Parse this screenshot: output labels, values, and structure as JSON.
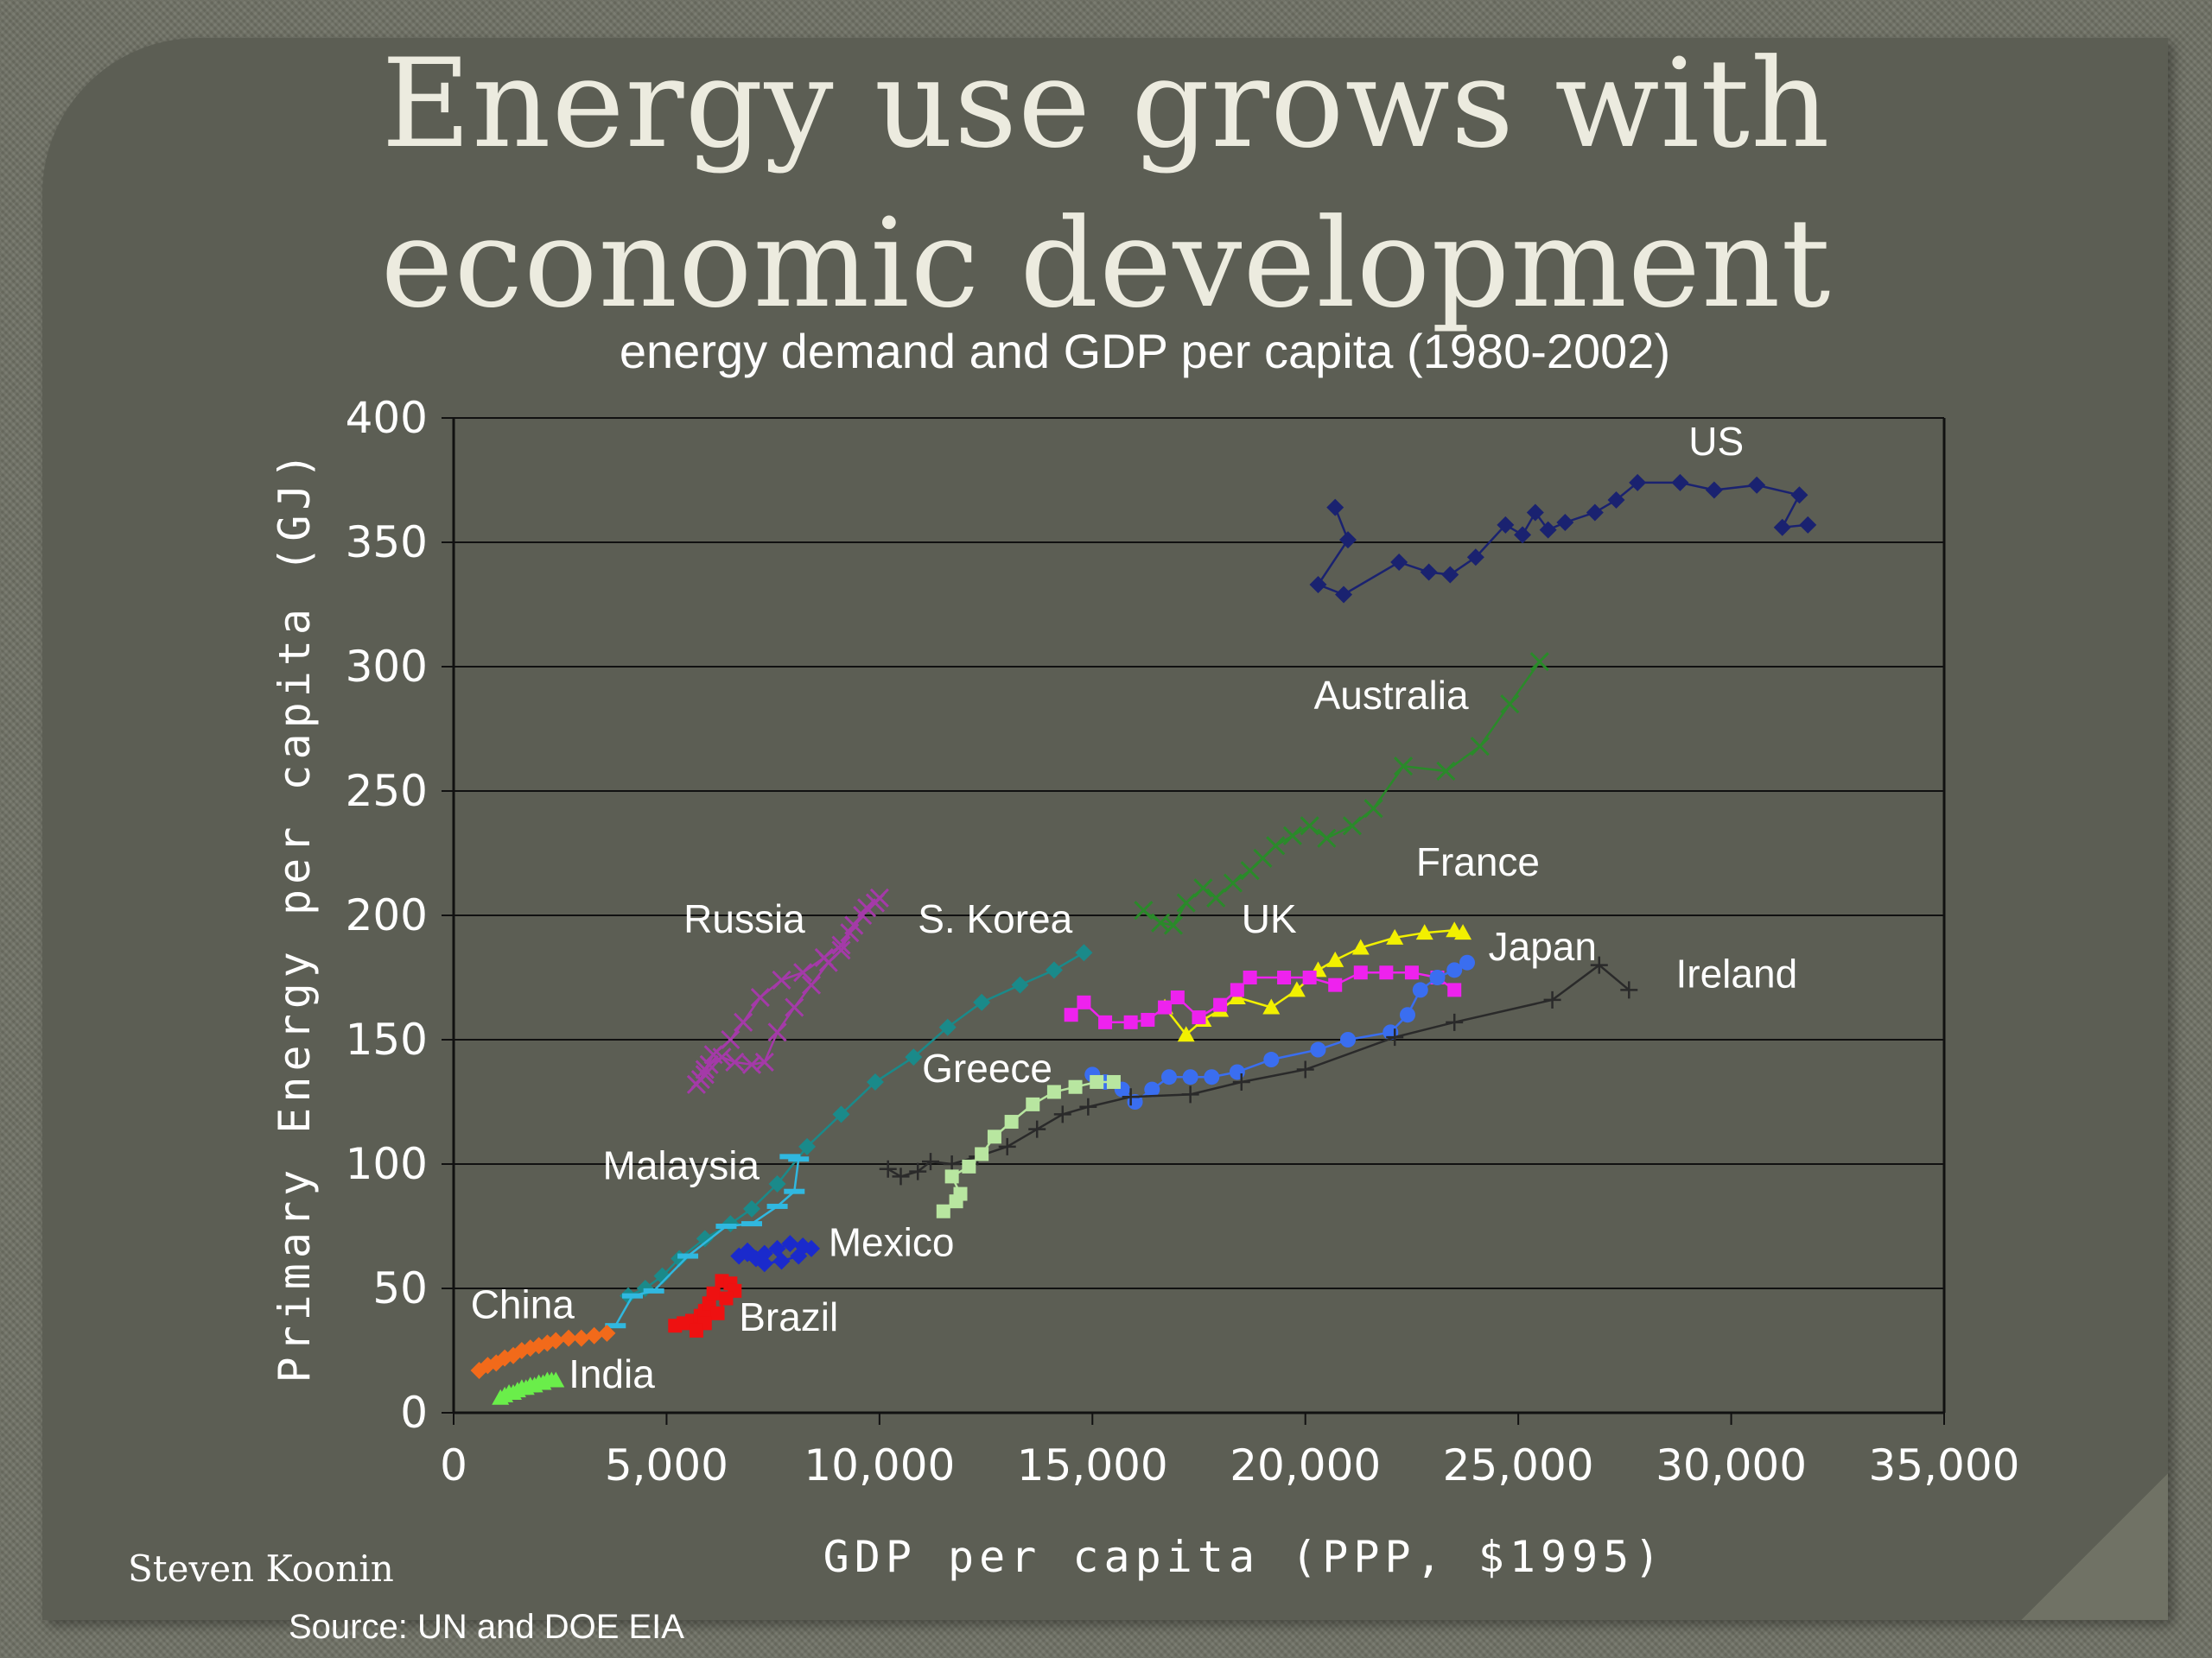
{
  "title_line1": "Energy use grows with",
  "title_line2": "economic development",
  "author": "Steven Koonin",
  "source": "Source: UN and DOE EIA",
  "chart_data": {
    "type": "scatter",
    "title": "energy demand and GDP per capita (1980-2002)",
    "xlabel": "GDP  per  capita  (PPP,  $1995)",
    "ylabel": "Primary  Energy  per  capita  (GJ)",
    "xlim": [
      0,
      35000
    ],
    "ylim": [
      0,
      400
    ],
    "xticks": [
      "0",
      "5,000",
      "10,000",
      "15,000",
      "20,000",
      "25,000",
      "30,000",
      "35,000"
    ],
    "yticks": [
      "0",
      "50",
      "100",
      "150",
      "200",
      "250",
      "300",
      "350",
      "400"
    ],
    "grid": "horizontal",
    "series": [
      {
        "name": "US",
        "color": "#1a2270",
        "marker": "diamond",
        "x": [
          20700,
          21000,
          20300,
          20900,
          22200,
          22900,
          23400,
          24000,
          24700,
          25100,
          25400,
          25700,
          26100,
          26800,
          27300,
          27800,
          28800,
          29600,
          30600,
          31600,
          31200,
          31800
        ],
        "y": [
          364,
          351,
          333,
          329,
          342,
          338,
          337,
          344,
          357,
          353,
          362,
          355,
          358,
          362,
          367,
          374,
          374,
          371,
          373,
          369,
          356,
          357
        ]
      },
      {
        "name": "Australia",
        "color": "#2a8a2a",
        "marker": "x",
        "x": [
          16200,
          16600,
          16900,
          17200,
          17600,
          17900,
          18300,
          18700,
          19000,
          19300,
          19700,
          20100,
          20500,
          21100,
          21600,
          22300,
          23300,
          24100,
          24800,
          25500
        ],
        "y": [
          202,
          197,
          196,
          205,
          211,
          207,
          213,
          218,
          223,
          228,
          232,
          236,
          231,
          236,
          243,
          260,
          258,
          268,
          285,
          302
        ]
      },
      {
        "name": "France",
        "color": "#f2f000",
        "marker": "triangle",
        "x": [
          16700,
          17200,
          17600,
          18000,
          18400,
          19200,
          19800,
          20300,
          20700,
          21300,
          22100,
          22800,
          23500,
          23700
        ],
        "y": [
          163,
          152,
          158,
          162,
          167,
          163,
          170,
          178,
          182,
          187,
          191,
          193,
          194,
          193
        ]
      },
      {
        "name": "UK",
        "color": "#ee22ee",
        "marker": "square",
        "x": [
          14500,
          14800,
          15300,
          15900,
          16300,
          16700,
          17000,
          17500,
          18000,
          18400,
          18700,
          19500,
          20100,
          20700,
          21300,
          21900,
          22500,
          23100,
          23500
        ],
        "y": [
          160,
          165,
          157,
          157,
          158,
          163,
          167,
          159,
          164,
          170,
          175,
          175,
          175,
          172,
          177,
          177,
          177,
          175,
          170
        ]
      },
      {
        "name": "Japan",
        "color": "#3a6ef0",
        "marker": "circle",
        "x": [
          15000,
          15300,
          15700,
          16000,
          16400,
          16800,
          17300,
          17800,
          18400,
          19200,
          20300,
          21000,
          22000,
          22400,
          22700,
          23100,
          23500,
          23800
        ],
        "y": [
          136,
          133,
          130,
          125,
          130,
          135,
          135,
          135,
          137,
          142,
          146,
          150,
          153,
          160,
          170,
          175,
          178,
          181
        ]
      },
      {
        "name": "Ireland",
        "color": "#2a2a2a",
        "marker": "plus",
        "x": [
          10200,
          10500,
          10900,
          11200,
          11700,
          12300,
          13000,
          13700,
          14300,
          14900,
          15900,
          17300,
          18500,
          20000,
          22100,
          23500,
          25800,
          26900,
          27600
        ],
        "y": [
          98,
          95,
          97,
          101,
          100,
          103,
          107,
          114,
          120,
          123,
          127,
          128,
          133,
          138,
          151,
          157,
          166,
          180,
          170
        ]
      },
      {
        "name": "Greece",
        "color": "#b8e6a0",
        "marker": "square",
        "x": [
          11500,
          11800,
          11900,
          11700,
          12100,
          12400,
          12700,
          13100,
          13600,
          14100,
          14600,
          15100,
          15500
        ],
        "y": [
          81,
          85,
          88,
          95,
          99,
          104,
          111,
          117,
          124,
          129,
          131,
          133,
          133
        ]
      },
      {
        "name": "Russia",
        "color": "#a43aa8",
        "marker": "x",
        "x": [
          5700,
          5900,
          6000,
          6300,
          6600,
          7000,
          7300,
          7600,
          8000,
          8400,
          8800,
          9100,
          9300,
          9600,
          9900,
          10000,
          9700,
          9400,
          9100,
          8700,
          8200,
          7700,
          7200,
          6800,
          6500,
          6100,
          5900,
          5800
        ],
        "y": [
          132,
          136,
          140,
          143,
          141,
          140,
          141,
          153,
          163,
          172,
          181,
          186,
          193,
          200,
          205,
          207,
          203,
          196,
          188,
          183,
          177,
          174,
          167,
          157,
          150,
          144,
          138,
          134
        ]
      },
      {
        "name": "S. Korea",
        "color": "#1a8a8a",
        "marker": "diamond",
        "x": [
          4100,
          4500,
          4900,
          5300,
          5900,
          6500,
          7000,
          7600,
          8300,
          9100,
          9900,
          10800,
          11600,
          12400,
          13300,
          14100,
          14800
        ],
        "y": [
          47,
          50,
          55,
          62,
          70,
          76,
          82,
          92,
          107,
          120,
          133,
          143,
          155,
          165,
          172,
          178,
          185
        ]
      },
      {
        "name": "Malaysia",
        "color": "#30b8e0",
        "marker": "dash",
        "x": [
          3800,
          4200,
          4700,
          5500,
          6400,
          7000,
          7600,
          8000,
          8100,
          7900
        ],
        "y": [
          35,
          47,
          49,
          63,
          75,
          76,
          83,
          89,
          102,
          103
        ]
      },
      {
        "name": "Mexico",
        "color": "#1a2acc",
        "marker": "diamond",
        "x": [
          6700,
          6900,
          7100,
          7300,
          7600,
          7900,
          8200,
          8400,
          8100,
          7700,
          7300,
          6900
        ],
        "y": [
          63,
          65,
          62,
          64,
          66,
          68,
          67,
          66,
          63,
          61,
          60,
          64
        ]
      },
      {
        "name": "Brazil",
        "color": "#ee1111",
        "marker": "square",
        "x": [
          5200,
          5400,
          5600,
          5800,
          5900,
          6000,
          6100,
          6300,
          6500,
          6600,
          6400,
          6200,
          5900,
          5700
        ],
        "y": [
          35,
          36,
          37,
          39,
          41,
          44,
          48,
          53,
          52,
          49,
          46,
          40,
          36,
          33
        ]
      },
      {
        "name": "China",
        "color": "#f26a1a",
        "marker": "diamond",
        "x": [
          600,
          800,
          1000,
          1200,
          1400,
          1600,
          1800,
          2000,
          2200,
          2400,
          2700,
          3000,
          3300,
          3600
        ],
        "y": [
          17,
          19,
          20,
          22,
          23,
          25,
          26,
          27,
          28,
          29,
          30,
          30,
          31,
          32
        ]
      },
      {
        "name": "India",
        "color": "#6aee4a",
        "marker": "triangle",
        "x": [
          1100,
          1200,
          1300,
          1400,
          1500,
          1600,
          1700,
          1800,
          1900,
          2000,
          2100,
          2200,
          2300,
          2400
        ],
        "y": [
          6,
          7,
          8,
          8,
          9,
          10,
          10,
          11,
          11,
          12,
          12,
          13,
          13,
          13
        ]
      }
    ],
    "labels": [
      {
        "text": "US",
        "x": 29000,
        "y": 385
      },
      {
        "text": "Australia",
        "x": 20200,
        "y": 283
      },
      {
        "text": "France",
        "x": 22600,
        "y": 216
      },
      {
        "text": "UK",
        "x": 18500,
        "y": 193
      },
      {
        "text": "Japan",
        "x": 24300,
        "y": 182
      },
      {
        "text": "Ireland",
        "x": 28700,
        "y": 171
      },
      {
        "text": "Russia",
        "x": 5400,
        "y": 193
      },
      {
        "text": "S. Korea",
        "x": 10900,
        "y": 193
      },
      {
        "text": "Greece",
        "x": 11000,
        "y": 133
      },
      {
        "text": "Malaysia",
        "x": 3500,
        "y": 94
      },
      {
        "text": "Mexico",
        "x": 8800,
        "y": 63
      },
      {
        "text": "Brazil",
        "x": 6700,
        "y": 33
      },
      {
        "text": "China",
        "x": 400,
        "y": 38
      },
      {
        "text": "India",
        "x": 2700,
        "y": 10
      }
    ]
  }
}
